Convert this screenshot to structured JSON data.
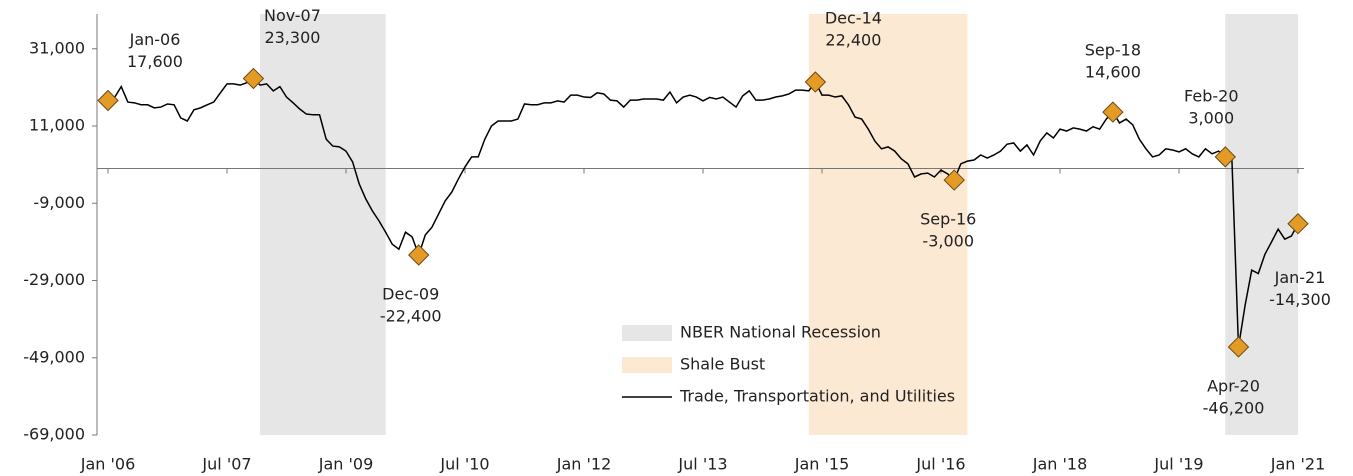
{
  "chart_data": {
    "type": "line",
    "x": [
      "2006-01",
      "2006-02",
      "2006-03",
      "2006-04",
      "2006-05",
      "2006-06",
      "2006-07",
      "2006-08",
      "2006-09",
      "2006-10",
      "2006-11",
      "2006-12",
      "2007-01",
      "2007-02",
      "2007-03",
      "2007-04",
      "2007-05",
      "2007-06",
      "2007-07",
      "2007-08",
      "2007-09",
      "2007-10",
      "2007-11",
      "2007-12",
      "2008-01",
      "2008-02",
      "2008-03",
      "2008-04",
      "2008-05",
      "2008-06",
      "2008-07",
      "2008-08",
      "2008-09",
      "2008-10",
      "2008-11",
      "2008-12",
      "2009-01",
      "2009-02",
      "2009-03",
      "2009-04",
      "2009-05",
      "2009-06",
      "2009-07",
      "2009-08",
      "2009-09",
      "2009-10",
      "2009-11",
      "2009-12",
      "2010-01",
      "2010-02",
      "2010-03",
      "2010-04",
      "2010-05",
      "2010-06",
      "2010-07",
      "2010-08",
      "2010-09",
      "2010-10",
      "2010-11",
      "2010-12",
      "2011-01",
      "2011-02",
      "2011-03",
      "2011-04",
      "2011-05",
      "2011-06",
      "2011-07",
      "2011-08",
      "2011-09",
      "2011-10",
      "2011-11",
      "2011-12",
      "2012-01",
      "2012-02",
      "2012-03",
      "2012-04",
      "2012-05",
      "2012-06",
      "2012-07",
      "2012-08",
      "2012-09",
      "2012-10",
      "2012-11",
      "2012-12",
      "2013-01",
      "2013-02",
      "2013-03",
      "2013-04",
      "2013-05",
      "2013-06",
      "2013-07",
      "2013-08",
      "2013-09",
      "2013-10",
      "2013-11",
      "2013-12",
      "2014-01",
      "2014-02",
      "2014-03",
      "2014-04",
      "2014-05",
      "2014-06",
      "2014-07",
      "2014-08",
      "2014-09",
      "2014-10",
      "2014-11",
      "2014-12",
      "2015-01",
      "2015-02",
      "2015-03",
      "2015-04",
      "2015-05",
      "2015-06",
      "2015-07",
      "2015-08",
      "2015-09",
      "2015-10",
      "2015-11",
      "2015-12",
      "2016-01",
      "2016-02",
      "2016-03",
      "2016-04",
      "2016-05",
      "2016-06",
      "2016-07",
      "2016-08",
      "2016-09",
      "2016-10",
      "2016-11",
      "2016-12",
      "2017-01",
      "2017-02",
      "2017-03",
      "2017-04",
      "2017-05",
      "2017-06",
      "2017-07",
      "2017-08",
      "2017-09",
      "2017-10",
      "2017-11",
      "2017-12",
      "2018-01",
      "2018-02",
      "2018-03",
      "2018-04",
      "2018-05",
      "2018-06",
      "2018-07",
      "2018-08",
      "2018-09",
      "2018-10",
      "2018-11",
      "2018-12",
      "2019-01",
      "2019-02",
      "2019-03",
      "2019-04",
      "2019-05",
      "2019-06",
      "2019-07",
      "2019-08",
      "2019-09",
      "2019-10",
      "2019-11",
      "2019-12",
      "2020-01",
      "2020-02",
      "2020-03",
      "2020-04",
      "2020-05",
      "2020-06",
      "2020-07",
      "2020-08",
      "2020-09",
      "2020-10",
      "2020-11",
      "2020-12",
      "2021-01"
    ],
    "series": [
      {
        "name": "Trade, Transportation, and Utilities",
        "color": "#000000",
        "values": [
          17600,
          18400,
          21200,
          17200,
          17000,
          16500,
          16500,
          15700,
          15900,
          16700,
          16500,
          13100,
          12300,
          15200,
          15700,
          16500,
          17200,
          19600,
          21900,
          21900,
          21600,
          22200,
          23300,
          21600,
          21900,
          20100,
          21200,
          18500,
          17000,
          15400,
          14100,
          13900,
          13900,
          7600,
          5800,
          5600,
          4500,
          1700,
          -4000,
          -7900,
          -11000,
          -13600,
          -16500,
          -19600,
          -20900,
          -16500,
          -17700,
          -22400,
          -17200,
          -15200,
          -11800,
          -8400,
          -6100,
          -2700,
          400,
          3000,
          3000,
          7600,
          11000,
          12300,
          12300,
          12300,
          12800,
          16700,
          16500,
          16500,
          17000,
          17000,
          17500,
          17200,
          19000,
          19000,
          18500,
          18400,
          19600,
          19300,
          17700,
          17500,
          15900,
          17700,
          17700,
          18000,
          18000,
          18000,
          17700,
          19800,
          17000,
          18500,
          19000,
          18500,
          17500,
          18400,
          18000,
          18500,
          17200,
          15900,
          18800,
          20100,
          17700,
          17700,
          18000,
          18500,
          18800,
          19300,
          20300,
          20300,
          20100,
          22400,
          19000,
          19000,
          18500,
          18800,
          16500,
          13300,
          12800,
          10200,
          7100,
          5100,
          5600,
          4500,
          2500,
          1200,
          -2200,
          -1400,
          -1200,
          -2200,
          -400,
          -1400,
          -3000,
          1200,
          1900,
          2200,
          3500,
          2700,
          3500,
          4500,
          6300,
          6600,
          4500,
          6100,
          3500,
          7100,
          9200,
          7900,
          10200,
          9700,
          10500,
          10200,
          9700,
          10800,
          10200,
          12800,
          14600,
          11800,
          12800,
          11300,
          7600,
          5100,
          3000,
          3500,
          5100,
          4800,
          4300,
          5100,
          3800,
          3000,
          5100,
          3800,
          4500,
          3000,
          2500,
          -46200,
          -35400,
          -26300,
          -27200,
          -22200,
          -19000,
          -15700,
          -18300,
          -17500,
          -14300
        ]
      }
    ],
    "shaded_regions": [
      {
        "name": "NBER National Recession",
        "color": "#e6e6e6",
        "ranges": [
          {
            "start": "2007-12",
            "end": "2009-07"
          },
          {
            "start": "2020-02",
            "end": "2021-01"
          }
        ]
      },
      {
        "name": "Shale Bust",
        "color": "#fce9d3",
        "ranges": [
          {
            "start": "2014-11",
            "end": "2016-11"
          }
        ]
      }
    ],
    "annotations": [
      {
        "x": "2006-01",
        "label": "Jan-06",
        "value": 17600,
        "value_label": "17,600"
      },
      {
        "x": "2007-11",
        "label": "Nov-07",
        "value": 23300,
        "value_label": "23,300"
      },
      {
        "x": "2009-12",
        "label": "Dec-09",
        "value": -22400,
        "value_label": "-22,400"
      },
      {
        "x": "2014-12",
        "label": "Dec-14",
        "value": 22400,
        "value_label": "22,400"
      },
      {
        "x": "2016-09",
        "label": "Sep-16",
        "value": -3000,
        "value_label": "-3,000"
      },
      {
        "x": "2018-09",
        "label": "Sep-18",
        "value": 14600,
        "value_label": "14,600"
      },
      {
        "x": "2020-02",
        "label": "Feb-20",
        "value": 3000,
        "value_label": "3,000"
      },
      {
        "x": "2020-04",
        "label": "Apr-20",
        "value": -46200,
        "value_label": "-46,200"
      },
      {
        "x": "2021-01",
        "label": "Jan-21",
        "value": -14300,
        "value_label": "-14,300"
      }
    ],
    "marker_color": "#e39b26",
    "xlim": [
      "2006-01",
      "2021-01"
    ],
    "xticks": [
      {
        "value": "2006-01",
        "label": "Jan '06"
      },
      {
        "value": "2007-07",
        "label": "Jul '07"
      },
      {
        "value": "2009-01",
        "label": "Jan '09"
      },
      {
        "value": "2010-07",
        "label": "Jul '10"
      },
      {
        "value": "2012-01",
        "label": "Jan '12"
      },
      {
        "value": "2013-07",
        "label": "Jul '13"
      },
      {
        "value": "2015-01",
        "label": "Jan '15"
      },
      {
        "value": "2016-07",
        "label": "Jul '16"
      },
      {
        "value": "2018-01",
        "label": "Jan '18"
      },
      {
        "value": "2019-07",
        "label": "Jul '19"
      },
      {
        "value": "2021-01",
        "label": "Jan '21"
      }
    ],
    "ylim": [
      -69000,
      40000
    ],
    "yticks": [
      {
        "value": 31000,
        "label": "31,000"
      },
      {
        "value": 11000,
        "label": "11,000"
      },
      {
        "value": -9000,
        "label": "-9,000"
      },
      {
        "value": -29000,
        "label": "-29,000"
      },
      {
        "value": -49000,
        "label": "-49,000"
      },
      {
        "value": -69000,
        "label": "-69,000"
      }
    ]
  }
}
